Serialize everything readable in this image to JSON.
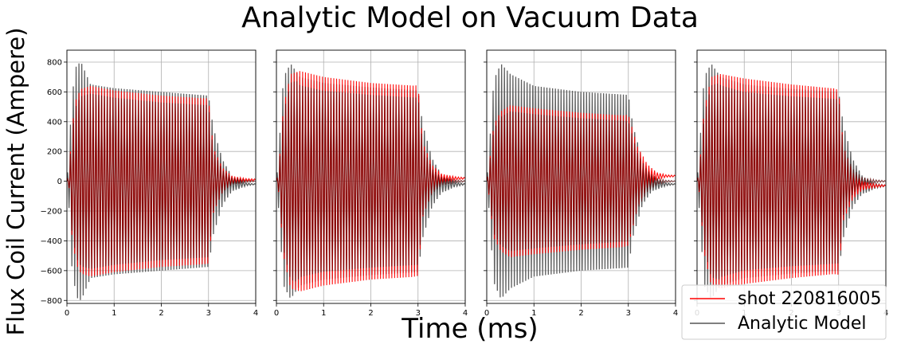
{
  "figure": {
    "title": "Analytic Model on Vacuum Data",
    "xlabel": "Time (ms)",
    "ylabel": "Flux Coil Current (Ampere)"
  },
  "legend": {
    "position": "lower-right",
    "entries": [
      {
        "label": "shot 220816005",
        "color": "#ff0000"
      },
      {
        "label": "Analytic Model",
        "color": "#555555"
      }
    ]
  },
  "chart_data": [
    {
      "type": "line",
      "panel": 1,
      "xlim": [
        0,
        4
      ],
      "ylim": [
        -820,
        880
      ],
      "xticks": [
        "0",
        "1",
        "2",
        "3",
        "4"
      ],
      "yticks": [
        "800",
        "600",
        "400",
        "200",
        "0",
        "−200",
        "−400",
        "−600",
        "−800"
      ],
      "grid": true,
      "oscillation_period_ms": 0.06,
      "series": [
        {
          "name": "shot 220816005",
          "color": "#ff0000",
          "envelope_t": [
            0,
            0.05,
            0.1,
            0.2,
            0.3,
            0.5,
            1.0,
            2.0,
            2.5,
            3.0,
            3.1,
            3.3,
            3.5,
            3.8,
            4.0
          ],
          "envelope_amp": [
            0,
            50,
            350,
            560,
            620,
            640,
            610,
            575,
            565,
            555,
            220,
            80,
            25,
            8,
            5
          ],
          "offset": 10
        },
        {
          "name": "Analytic Model",
          "color": "#555555",
          "envelope_t": [
            0,
            0.05,
            0.1,
            0.2,
            0.3,
            0.5,
            1.0,
            2.0,
            3.0,
            3.1,
            3.3,
            3.5,
            3.8,
            4.0
          ],
          "envelope_amp": [
            0,
            200,
            560,
            780,
            800,
            650,
            625,
            600,
            575,
            360,
            150,
            50,
            10,
            2
          ],
          "offset_after_tail": -20
        }
      ]
    },
    {
      "type": "line",
      "panel": 2,
      "xlim": [
        0,
        4
      ],
      "ylim": [
        -820,
        880
      ],
      "xticks": [
        "0",
        "1",
        "2",
        "3",
        "4"
      ],
      "yticks": [
        "800",
        "600",
        "400",
        "200",
        "0",
        "−200",
        "−400",
        "−600",
        "−800"
      ],
      "grid": true,
      "oscillation_period_ms": 0.06,
      "series": [
        {
          "name": "shot 220816005",
          "color": "#ff0000",
          "envelope_t": [
            0,
            0.05,
            0.15,
            0.3,
            0.5,
            1.0,
            2.0,
            3.0,
            3.1,
            3.3,
            3.5,
            3.8,
            4.0
          ],
          "envelope_amp": [
            0,
            80,
            500,
            720,
            740,
            700,
            660,
            640,
            250,
            90,
            30,
            10,
            5
          ],
          "offset": 20
        },
        {
          "name": "Analytic Model",
          "color": "#555555",
          "envelope_t": [
            0,
            0.05,
            0.15,
            0.3,
            0.5,
            1.0,
            2.0,
            3.0,
            3.1,
            3.3,
            3.5,
            3.8,
            4.0
          ],
          "envelope_amp": [
            0,
            200,
            700,
            790,
            700,
            660,
            630,
            610,
            380,
            160,
            60,
            15,
            3
          ],
          "offset_after_tail": -20
        }
      ]
    },
    {
      "type": "line",
      "panel": 3,
      "xlim": [
        0,
        4
      ],
      "ylim": [
        -820,
        880
      ],
      "xticks": [
        "0",
        "1",
        "2",
        "3",
        "4"
      ],
      "yticks": [
        "800",
        "600",
        "400",
        "200",
        "0",
        "−200",
        "−400",
        "−600",
        "−800"
      ],
      "grid": true,
      "oscillation_period_ms": 0.06,
      "series": [
        {
          "name": "shot 220816005",
          "color": "#ff0000",
          "envelope_t": [
            0,
            0.05,
            0.15,
            0.3,
            0.5,
            1.0,
            2.0,
            3.0,
            3.2,
            3.4,
            3.6,
            3.8,
            4.0
          ],
          "envelope_amp": [
            0,
            100,
            380,
            470,
            510,
            490,
            460,
            440,
            200,
            80,
            25,
            8,
            5
          ],
          "offset": 35
        },
        {
          "name": "Analytic Model",
          "color": "#555555",
          "envelope_t": [
            0,
            0.05,
            0.15,
            0.3,
            0.5,
            1.0,
            2.0,
            3.0,
            3.1,
            3.3,
            3.5,
            3.8,
            4.0
          ],
          "envelope_amp": [
            0,
            200,
            680,
            790,
            720,
            640,
            600,
            580,
            370,
            150,
            50,
            10,
            2
          ],
          "offset_after_tail": -20
        }
      ]
    },
    {
      "type": "line",
      "panel": 4,
      "xlim": [
        0,
        4
      ],
      "ylim": [
        -820,
        880
      ],
      "xticks": [
        "0",
        "1",
        "2",
        "3",
        "4"
      ],
      "yticks": [
        "800",
        "600",
        "400",
        "200",
        "0",
        "−200",
        "−400",
        "−600",
        "−800"
      ],
      "grid": true,
      "oscillation_period_ms": 0.06,
      "series": [
        {
          "name": "shot 220816005",
          "color": "#ff0000",
          "envelope_t": [
            0,
            0.05,
            0.15,
            0.3,
            0.5,
            1.0,
            2.0,
            3.0,
            3.1,
            3.3,
            3.5,
            3.8,
            4.0
          ],
          "envelope_amp": [
            0,
            80,
            480,
            700,
            720,
            690,
            650,
            620,
            250,
            90,
            30,
            10,
            5
          ],
          "offset": -30
        },
        {
          "name": "Analytic Model",
          "color": "#555555",
          "envelope_t": [
            0,
            0.05,
            0.15,
            0.3,
            0.5,
            1.0,
            2.0,
            3.0,
            3.1,
            3.3,
            3.5,
            3.8,
            4.0
          ],
          "envelope_amp": [
            0,
            200,
            700,
            790,
            700,
            650,
            620,
            600,
            380,
            160,
            60,
            15,
            3
          ],
          "offset_after_tail": -30
        }
      ]
    }
  ]
}
